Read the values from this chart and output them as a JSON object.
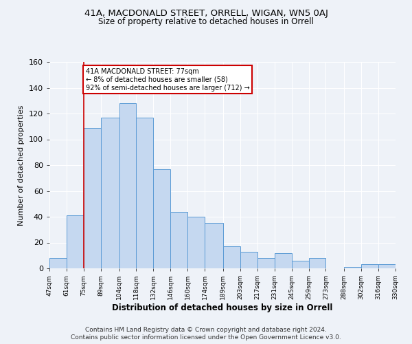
{
  "title": "41A, MACDONALD STREET, ORRELL, WIGAN, WN5 0AJ",
  "subtitle": "Size of property relative to detached houses in Orrell",
  "xlabel": "Distribution of detached houses by size in Orrell",
  "ylabel": "Number of detached properties",
  "bar_edges": [
    47,
    61,
    75,
    89,
    104,
    118,
    132,
    146,
    160,
    174,
    189,
    203,
    217,
    231,
    245,
    259,
    273,
    288,
    302,
    316,
    330
  ],
  "bar_heights": [
    8,
    41,
    109,
    117,
    128,
    117,
    77,
    44,
    40,
    35,
    17,
    13,
    8,
    12,
    6,
    8,
    0,
    1,
    3,
    3
  ],
  "bar_color": "#c5d8f0",
  "bar_edge_color": "#5b9bd5",
  "red_line_x": 75,
  "annotation_text": "41A MACDONALD STREET: 77sqm\n← 8% of detached houses are smaller (58)\n92% of semi-detached houses are larger (712) →",
  "annotation_box_color": "#ffffff",
  "annotation_box_edge_color": "#cc0000",
  "ylim": [
    0,
    160
  ],
  "yticks": [
    0,
    20,
    40,
    60,
    80,
    100,
    120,
    140,
    160
  ],
  "tick_labels": [
    "47sqm",
    "61sqm",
    "75sqm",
    "89sqm",
    "104sqm",
    "118sqm",
    "132sqm",
    "146sqm",
    "160sqm",
    "174sqm",
    "189sqm",
    "203sqm",
    "217sqm",
    "231sqm",
    "245sqm",
    "259sqm",
    "273sqm",
    "288sqm",
    "302sqm",
    "316sqm",
    "330sqm"
  ],
  "footer1": "Contains HM Land Registry data © Crown copyright and database right 2024.",
  "footer2": "Contains public sector information licensed under the Open Government Licence v3.0.",
  "bg_color": "#eef2f8",
  "grid_color": "#ffffff"
}
